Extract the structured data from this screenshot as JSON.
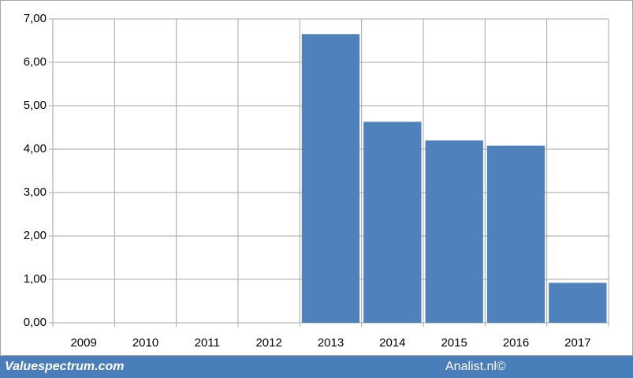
{
  "chart_data": {
    "type": "bar",
    "categories": [
      "2009",
      "2010",
      "2011",
      "2012",
      "2013",
      "2014",
      "2015",
      "2016",
      "2017"
    ],
    "values": [
      null,
      null,
      null,
      null,
      6.65,
      4.63,
      4.2,
      4.08,
      0.92
    ],
    "color": "#4f81bd",
    "ylim": [
      0,
      7
    ],
    "yticks": [
      {
        "value": 0,
        "label": "0,00"
      },
      {
        "value": 1,
        "label": "1,00"
      },
      {
        "value": 2,
        "label": "2,00"
      },
      {
        "value": 3,
        "label": "3,00"
      },
      {
        "value": 4,
        "label": "4,00"
      },
      {
        "value": 5,
        "label": "5,00"
      },
      {
        "value": 6,
        "label": "6,00"
      },
      {
        "value": 7,
        "label": "7,00"
      }
    ],
    "grid": true
  },
  "footer": {
    "left": "Valuespectrum.com",
    "right": "Analist.nl©"
  }
}
